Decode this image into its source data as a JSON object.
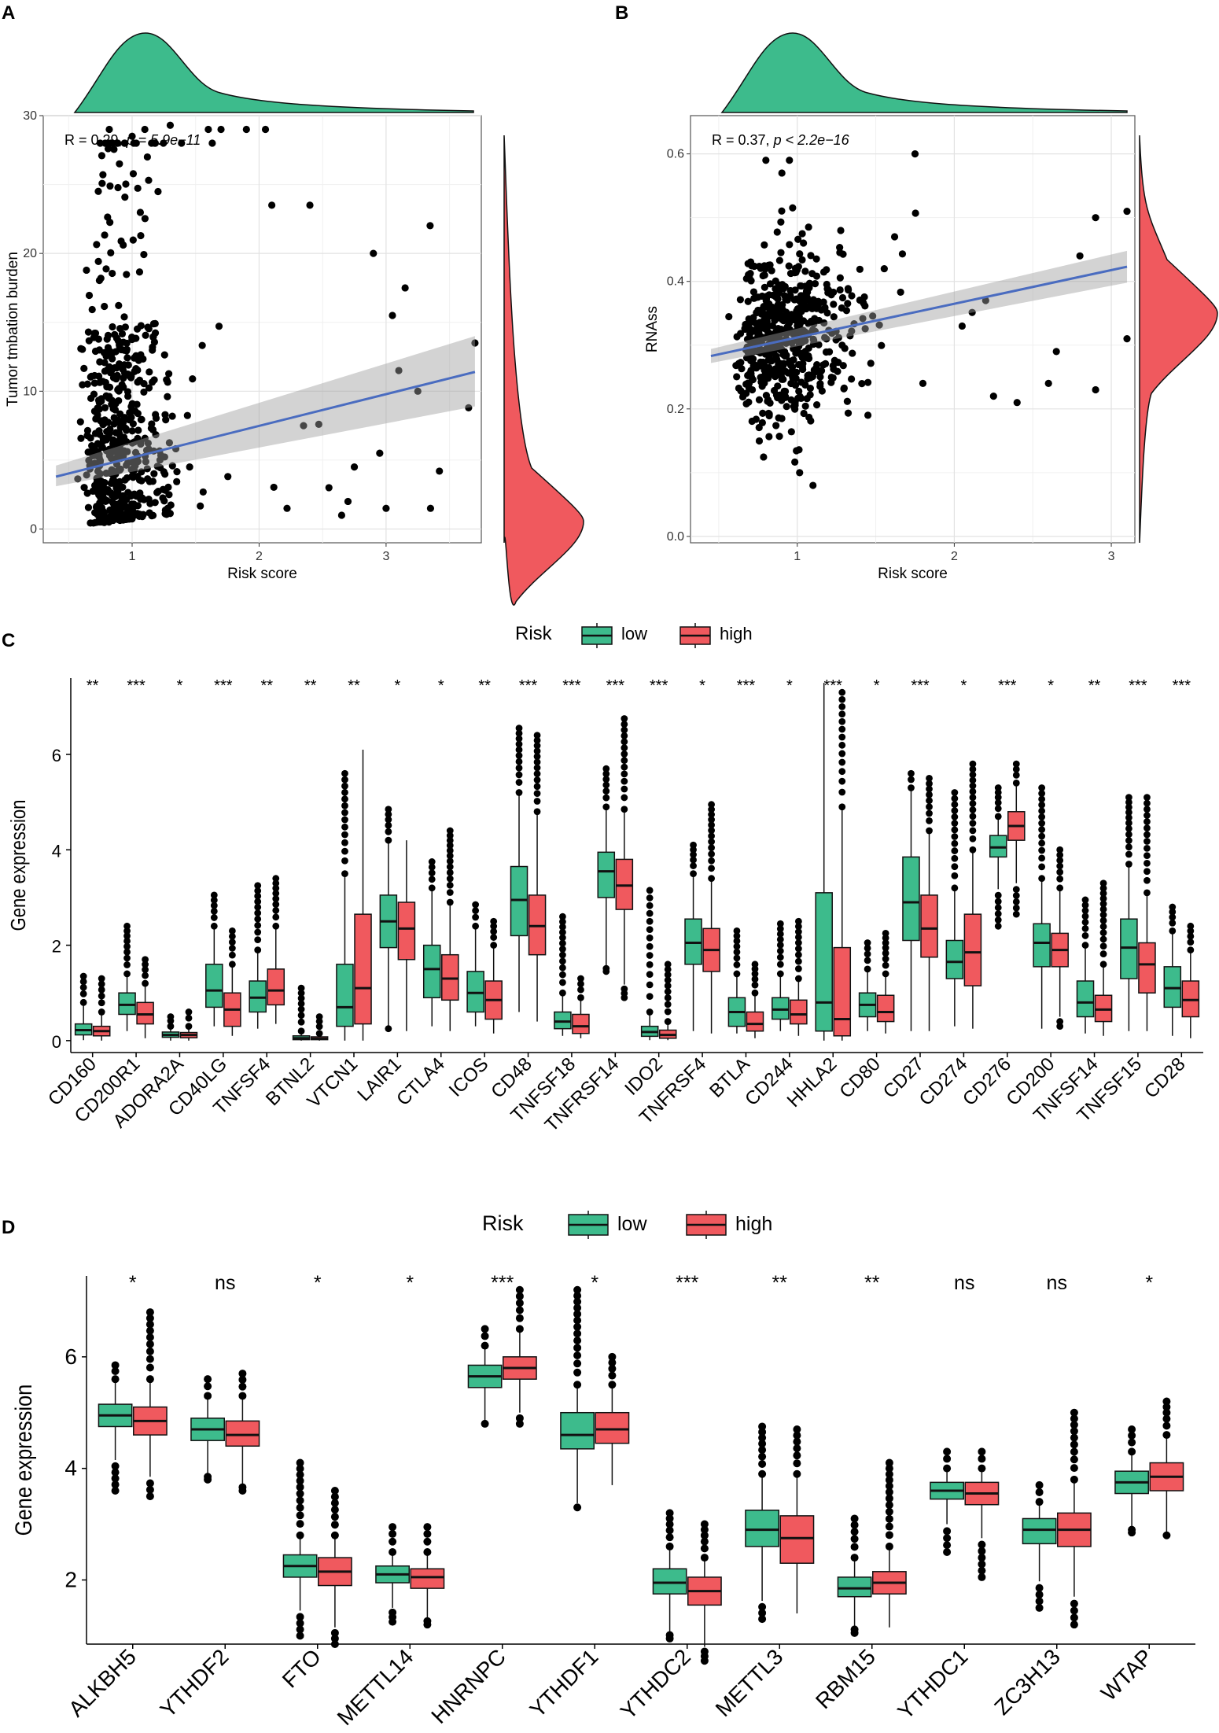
{
  "panels": {
    "a": "A",
    "b": "B",
    "c": "C",
    "d": "D"
  },
  "colors": {
    "low": "#3dbb8c",
    "high": "#f0595e",
    "trend": "#4a6cc0",
    "band": "#c8c8c8"
  },
  "chart_data": [
    {
      "id": "A",
      "type": "scatter",
      "xlabel": "Risk score",
      "ylabel": "Tumor tmbation burden",
      "xlim": [
        0.3,
        3.75
      ],
      "ylim": [
        -1,
        30
      ],
      "xticks": [
        1,
        2,
        3
      ],
      "yticks": [
        0,
        10,
        20,
        30
      ],
      "annotation": {
        "r": "R = 0.29, ",
        "p": "p = 5.9e−11"
      },
      "trend": {
        "x": [
          0.4,
          3.7
        ],
        "y": [
          3.8,
          11.4
        ],
        "ci_low": [
          3.1,
          8.9
        ],
        "ci_high": [
          4.6,
          14.0
        ]
      },
      "highlight": [
        [
          0.82,
          29
        ],
        [
          0.9,
          26.5
        ],
        [
          1.1,
          29
        ],
        [
          1.12,
          27
        ],
        [
          1.6,
          29
        ],
        [
          1.7,
          29
        ],
        [
          1.9,
          29
        ],
        [
          1.3,
          29.3
        ],
        [
          1.0,
          28.5
        ],
        [
          2.1,
          23.5
        ],
        [
          2.4,
          23.5
        ],
        [
          2.05,
          29
        ],
        [
          2.9,
          20
        ],
        [
          3.15,
          17.5
        ],
        [
          3.05,
          15.5
        ],
        [
          3.7,
          13.5
        ],
        [
          3.1,
          11.5
        ],
        [
          3.25,
          10
        ],
        [
          3.65,
          8.8
        ],
        [
          2.35,
          7.5
        ],
        [
          2.55,
          3
        ],
        [
          2.75,
          4.5
        ],
        [
          2.95,
          5.5
        ],
        [
          3.0,
          1.5
        ],
        [
          3.35,
          1.5
        ],
        [
          3.42,
          4.2
        ],
        [
          2.7,
          2
        ],
        [
          2.22,
          1.5
        ],
        [
          2.47,
          7.6
        ],
        [
          2.65,
          1
        ]
      ],
      "n_points": 560,
      "seed": 11
    },
    {
      "id": "B",
      "type": "scatter",
      "xlabel": "Risk score",
      "ylabel": "RNAss",
      "xlim": [
        0.32,
        3.15
      ],
      "ylim": [
        -0.01,
        0.66
      ],
      "xticks": [
        1,
        2,
        3
      ],
      "yticks": [
        0.0,
        0.2,
        0.4,
        0.6
      ],
      "yticklabels": [
        "0.0",
        "0.2",
        "0.4",
        "0.6"
      ],
      "annotation": {
        "r": "R = 0.37, ",
        "p": "p < 2.2e−16"
      },
      "trend": {
        "x": [
          0.45,
          3.1
        ],
        "y": [
          0.283,
          0.423
        ],
        "ci_low": [
          0.272,
          0.398
        ],
        "ci_high": [
          0.294,
          0.448
        ]
      },
      "highlight": [
        [
          1.75,
          0.6
        ],
        [
          1.1,
          0.08
        ],
        [
          2.8,
          0.44
        ],
        [
          2.9,
          0.5
        ],
        [
          3.1,
          0.51
        ],
        [
          2.65,
          0.29
        ],
        [
          2.9,
          0.23
        ],
        [
          2.6,
          0.24
        ],
        [
          3.1,
          0.31
        ],
        [
          2.25,
          0.22
        ],
        [
          2.4,
          0.21
        ],
        [
          1.45,
          0.19
        ],
        [
          0.8,
          0.59
        ],
        [
          0.95,
          0.59
        ],
        [
          1.62,
          0.47
        ],
        [
          2.2,
          0.37
        ],
        [
          2.05,
          0.33
        ],
        [
          1.8,
          0.24
        ]
      ],
      "n_points": 560,
      "seed": 29
    },
    {
      "id": "C",
      "type": "boxplot",
      "legend_title": "Risk",
      "legend": [
        "low",
        "high"
      ],
      "ylabel": "Gene expression",
      "ylim": [
        -0.25,
        7.6
      ],
      "yticks": [
        0,
        2,
        4,
        6
      ],
      "categories": [
        "CD160",
        "CD200R1",
        "ADORA2A",
        "CD40LG",
        "TNFSF4",
        "BTNL2",
        "VTCN1",
        "LAIR1",
        "CTLA4",
        "ICOS",
        "CD48",
        "TNFSF18",
        "TNFRSF14",
        "IDO2",
        "TNFRSF4",
        "BTLA",
        "CD244",
        "HHLA2",
        "CD80",
        "CD27",
        "CD274",
        "CD276",
        "CD200",
        "TNFSF14",
        "TNFSF15",
        "CD28"
      ],
      "significance": [
        "**",
        "***",
        "*",
        "***",
        "**",
        "**",
        "**",
        "*",
        "*",
        "**",
        "***",
        "***",
        "***",
        "***",
        "*",
        "***",
        "*",
        "***",
        "*",
        "***",
        "*",
        "***",
        "*",
        "**",
        "***",
        "***"
      ],
      "low": [
        [
          0.01,
          0.12,
          0.22,
          0.35,
          0.8,
          1.35
        ],
        [
          0.2,
          0.55,
          0.75,
          1.0,
          1.4,
          2.4
        ],
        [
          0.0,
          0.07,
          0.12,
          0.18,
          0.3,
          0.5
        ],
        [
          0.3,
          0.7,
          1.05,
          1.6,
          2.4,
          3.05
        ],
        [
          0.25,
          0.6,
          0.9,
          1.25,
          1.9,
          3.25
        ],
        [
          0.0,
          0.02,
          0.05,
          0.1,
          0.2,
          1.1
        ],
        [
          0.0,
          0.3,
          0.7,
          1.6,
          3.5,
          5.6
        ],
        [
          0.25,
          1.95,
          2.5,
          3.05,
          4.2,
          4.85
        ],
        [
          0.3,
          0.9,
          1.5,
          2.0,
          3.2,
          3.75
        ],
        [
          0.3,
          0.6,
          1.0,
          1.45,
          2.4,
          2.85
        ],
        [
          0.6,
          2.2,
          2.95,
          3.65,
          5.2,
          6.55
        ],
        [
          0.1,
          0.25,
          0.4,
          0.6,
          1.0,
          2.6
        ],
        [
          1.45,
          3.0,
          3.55,
          3.95,
          4.9,
          5.7
        ],
        [
          0.01,
          0.09,
          0.18,
          0.3,
          0.6,
          3.15
        ],
        [
          0.2,
          1.6,
          2.05,
          2.55,
          3.5,
          4.1
        ],
        [
          0.15,
          0.3,
          0.6,
          0.9,
          1.4,
          2.3
        ],
        [
          0.2,
          0.45,
          0.65,
          0.9,
          1.4,
          2.45
        ],
        [
          0.0,
          0.2,
          0.8,
          3.1,
          7.5,
          7.5
        ],
        [
          0.2,
          0.5,
          0.75,
          1.0,
          1.5,
          2.05
        ],
        [
          0.2,
          2.1,
          2.9,
          3.85,
          5.3,
          5.6
        ],
        [
          0.3,
          1.3,
          1.65,
          2.1,
          3.2,
          5.2
        ],
        [
          2.4,
          3.85,
          4.05,
          4.3,
          4.7,
          5.3
        ],
        [
          0.25,
          1.55,
          2.05,
          2.45,
          3.4,
          5.3
        ],
        [
          0.15,
          0.5,
          0.8,
          1.25,
          2.0,
          2.95
        ],
        [
          0.2,
          1.3,
          1.95,
          2.55,
          3.7,
          5.1
        ],
        [
          0.1,
          0.7,
          1.1,
          1.55,
          2.3,
          2.8
        ]
      ],
      "high": [
        [
          0.0,
          0.1,
          0.2,
          0.3,
          0.6,
          1.3
        ],
        [
          0.05,
          0.35,
          0.55,
          0.8,
          1.2,
          1.7
        ],
        [
          0.0,
          0.06,
          0.12,
          0.17,
          0.3,
          0.6
        ],
        [
          0.1,
          0.3,
          0.65,
          1.0,
          1.6,
          2.3
        ],
        [
          0.35,
          0.75,
          1.05,
          1.5,
          2.4,
          3.4
        ],
        [
          0.0,
          0.02,
          0.04,
          0.08,
          0.15,
          0.5
        ],
        [
          0.0,
          0.35,
          1.1,
          2.65,
          6.1,
          6.1
        ],
        [
          0.2,
          1.7,
          2.35,
          2.9,
          4.2,
          4.2
        ],
        [
          0.2,
          0.85,
          1.3,
          1.8,
          2.9,
          4.4
        ],
        [
          0.15,
          0.45,
          0.85,
          1.25,
          2.0,
          2.5
        ],
        [
          0.4,
          1.8,
          2.4,
          3.05,
          4.8,
          6.4
        ],
        [
          0.05,
          0.15,
          0.3,
          0.55,
          0.9,
          1.3
        ],
        [
          0.9,
          2.75,
          3.25,
          3.8,
          4.85,
          6.75
        ],
        [
          0.01,
          0.05,
          0.12,
          0.22,
          0.4,
          1.6
        ],
        [
          0.15,
          1.45,
          1.9,
          2.35,
          3.4,
          4.95
        ],
        [
          0.05,
          0.2,
          0.35,
          0.6,
          1.0,
          1.6
        ],
        [
          0.1,
          0.35,
          0.55,
          0.85,
          1.3,
          2.5
        ],
        [
          0.0,
          0.1,
          0.45,
          1.95,
          4.9,
          7.3
        ],
        [
          0.15,
          0.4,
          0.6,
          0.95,
          1.4,
          2.25
        ],
        [
          0.2,
          1.75,
          2.35,
          3.05,
          4.4,
          5.5
        ],
        [
          0.25,
          1.15,
          1.85,
          2.65,
          4.0,
          5.8
        ],
        [
          2.65,
          4.2,
          4.5,
          4.8,
          5.4,
          5.8
        ],
        [
          0.3,
          1.55,
          1.9,
          2.25,
          3.2,
          4.0
        ],
        [
          0.1,
          0.4,
          0.65,
          0.95,
          1.6,
          3.3
        ],
        [
          0.2,
          1.0,
          1.6,
          2.05,
          3.1,
          5.1
        ],
        [
          0.05,
          0.5,
          0.85,
          1.25,
          1.9,
          2.4
        ]
      ],
      "seed": 5
    },
    {
      "id": "D",
      "type": "boxplot",
      "legend_title": "Risk",
      "legend": [
        "low",
        "high"
      ],
      "ylabel": "Gene expression",
      "ylim": [
        0.85,
        7.45
      ],
      "yticks": [
        2,
        4,
        6
      ],
      "categories": [
        "ALKBH5",
        "YTHDF2",
        "FTO",
        "METTL14",
        "HNRNPC",
        "YTHDF1",
        "YTHDC2",
        "METTL3",
        "RBM15",
        "YTHDC1",
        "ZC3H13",
        "WTAP"
      ],
      "significance": [
        "*",
        "ns",
        "*",
        "*",
        "***",
        "*",
        "***",
        "**",
        "**",
        "ns",
        "ns",
        "*"
      ],
      "low": [
        [
          3.6,
          4.75,
          4.95,
          5.15,
          5.6,
          5.85
        ],
        [
          3.8,
          4.5,
          4.7,
          4.9,
          5.3,
          5.6
        ],
        [
          1.0,
          2.05,
          2.25,
          2.45,
          2.8,
          4.1
        ],
        [
          1.25,
          1.95,
          2.1,
          2.25,
          2.5,
          2.95
        ],
        [
          4.8,
          5.45,
          5.65,
          5.85,
          6.2,
          6.5
        ],
        [
          3.3,
          4.35,
          4.6,
          5.0,
          5.5,
          7.2
        ],
        [
          0.95,
          1.75,
          1.95,
          2.2,
          2.6,
          3.2
        ],
        [
          1.3,
          2.6,
          2.9,
          3.25,
          3.9,
          4.75
        ],
        [
          1.05,
          1.7,
          1.85,
          2.05,
          2.4,
          3.1
        ],
        [
          2.5,
          3.45,
          3.6,
          3.75,
          4.0,
          4.3
        ],
        [
          1.5,
          2.65,
          2.9,
          3.1,
          3.4,
          3.7
        ],
        [
          2.85,
          3.55,
          3.75,
          3.95,
          4.3,
          4.7
        ]
      ],
      "high": [
        [
          3.5,
          4.6,
          4.85,
          5.1,
          5.6,
          6.8
        ],
        [
          3.6,
          4.4,
          4.6,
          4.85,
          5.3,
          5.7
        ],
        [
          0.85,
          1.9,
          2.15,
          2.4,
          2.8,
          3.6
        ],
        [
          1.2,
          1.85,
          2.05,
          2.2,
          2.5,
          2.95
        ],
        [
          4.8,
          5.6,
          5.8,
          6.0,
          6.5,
          7.2
        ],
        [
          3.7,
          4.45,
          4.7,
          5.0,
          5.5,
          6.0
        ],
        [
          0.55,
          1.55,
          1.8,
          2.05,
          2.4,
          3.0
        ],
        [
          1.4,
          2.3,
          2.75,
          3.15,
          3.9,
          4.7
        ],
        [
          1.1,
          1.75,
          1.95,
          2.15,
          2.6,
          4.1
        ],
        [
          2.05,
          3.35,
          3.55,
          3.75,
          4.0,
          4.3
        ],
        [
          1.2,
          2.6,
          2.9,
          3.2,
          3.8,
          5.0
        ],
        [
          2.8,
          3.6,
          3.85,
          4.1,
          4.6,
          5.2
        ]
      ],
      "seed": 17
    }
  ]
}
